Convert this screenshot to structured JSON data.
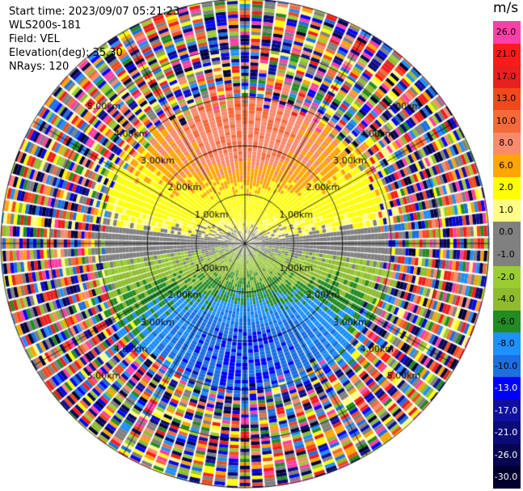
{
  "header": {
    "start_time": "Start time: 2023/09/07 05:21:23",
    "site": "WLS200s-181",
    "field": "Field: VEL",
    "elevation": "Elevation(deg): 35.30",
    "nrays": "NRays: 120"
  },
  "colorbar": {
    "unit": "m/s",
    "bins": [
      {
        "label": "26.0",
        "color": "#ff3fa8"
      },
      {
        "label": "21.0",
        "color": "#ff1a1a"
      },
      {
        "label": "17.0",
        "color": "#e8201f"
      },
      {
        "label": "13.0",
        "color": "#f04a1c"
      },
      {
        "label": "10.0",
        "color": "#f46a3a"
      },
      {
        "label": "8.0",
        "color": "#f98a6e"
      },
      {
        "label": "6.0",
        "color": "#ffa500"
      },
      {
        "label": "2.0",
        "color": "#ffff00"
      },
      {
        "label": "1.0",
        "color": "#fffd86"
      },
      {
        "label": "0.0",
        "color": "#808080"
      },
      {
        "label": "-1.0",
        "color": "#808080"
      },
      {
        "label": "-2.0",
        "color": "#9acd32"
      },
      {
        "label": "-4.0",
        "color": "#8fbc2f"
      },
      {
        "label": "-6.0",
        "color": "#228b22"
      },
      {
        "label": "-8.0",
        "color": "#1e90ff"
      },
      {
        "label": "-10.0",
        "color": "#1c6fe0"
      },
      {
        "label": "-13.0",
        "color": "#0000ff"
      },
      {
        "label": "-17.0",
        "color": "#1010a0"
      },
      {
        "label": "-21.0",
        "color": "#0a0a78"
      },
      {
        "label": "-26.0",
        "color": "#050550"
      },
      {
        "label": "-30.0",
        "color": "#000030"
      }
    ]
  },
  "chart_data": {
    "type": "heatmap",
    "projection": "polar PPI",
    "field": "VEL",
    "units": "m/s",
    "nrays": 120,
    "range_rings_km": [
      1.0,
      2.0,
      3.0,
      4.0,
      5.0
    ],
    "ring_labels": [
      "1.00km",
      "2.00km",
      "3.00km",
      "4.00km",
      "5.00km"
    ],
    "max_range_km": 5.0,
    "spoke_step_deg": 30,
    "velocity_pattern": {
      "north_core_ms": 10.0,
      "south_core_ms": -10.0,
      "ew_axis_ms": 0.0,
      "coherent_range_km": 3.0
    }
  }
}
